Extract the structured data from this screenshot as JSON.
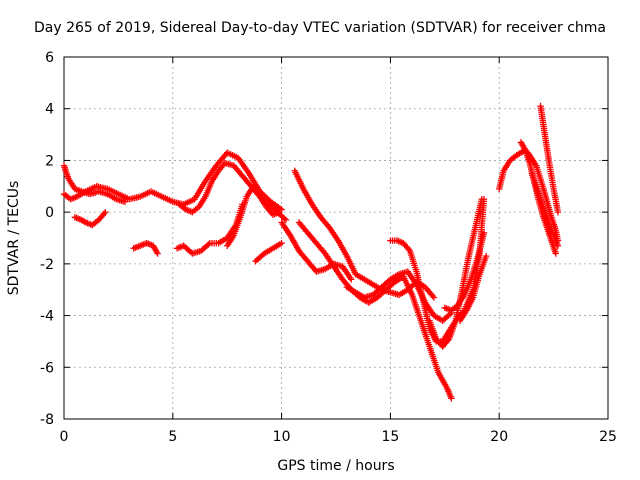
{
  "chart_data": {
    "type": "scatter",
    "title": "Day 265 of 2019, Sidereal Day-to-day VTEC variation (SDTVAR) for receiver chma",
    "xlabel": "GPS time / hours",
    "ylabel": "SDTVAR / TECUs",
    "xlim": [
      0,
      25
    ],
    "ylim": [
      -8,
      6
    ],
    "x_ticks": [
      0,
      5,
      10,
      15,
      20,
      25
    ],
    "y_ticks": [
      -8,
      -6,
      -4,
      -2,
      0,
      2,
      4,
      6
    ],
    "grid": true,
    "marker": "+",
    "color": "#ff0000",
    "series": [
      {
        "name": "s1",
        "x": [
          0.0,
          0.3,
          0.6,
          1.0,
          1.5,
          2.0,
          2.5,
          3.0,
          3.5,
          4.0,
          4.5,
          5.0,
          5.5,
          6.0,
          6.5,
          7.0,
          7.5,
          8.0,
          8.5,
          9.0,
          9.5,
          10.0
        ],
        "y": [
          0.7,
          0.5,
          0.6,
          0.8,
          1.0,
          0.9,
          0.7,
          0.5,
          0.6,
          0.8,
          0.6,
          0.4,
          0.3,
          0.5,
          1.2,
          1.8,
          2.3,
          2.1,
          1.5,
          0.8,
          0.4,
          0.1
        ]
      },
      {
        "name": "s2",
        "x": [
          0.0,
          0.2,
          0.5,
          0.8,
          1.2,
          1.6,
          2.0,
          2.4,
          2.8
        ],
        "y": [
          1.8,
          1.3,
          0.9,
          0.8,
          0.7,
          0.8,
          0.7,
          0.5,
          0.4
        ]
      },
      {
        "name": "s3",
        "x": [
          0.5,
          0.8,
          1.0,
          1.3,
          1.6,
          1.9
        ],
        "y": [
          -0.2,
          -0.3,
          -0.4,
          -0.5,
          -0.3,
          0.0
        ]
      },
      {
        "name": "s4",
        "x": [
          3.2,
          3.5,
          3.8,
          4.1,
          4.3
        ],
        "y": [
          -1.4,
          -1.3,
          -1.2,
          -1.3,
          -1.6
        ]
      },
      {
        "name": "s5",
        "x": [
          5.3,
          5.6,
          5.9,
          6.2,
          6.5,
          6.8,
          7.1,
          7.4,
          7.8,
          8.2,
          8.6,
          9.0,
          9.4,
          9.8,
          10.2
        ],
        "y": [
          0.3,
          0.1,
          0.0,
          0.2,
          0.6,
          1.2,
          1.6,
          1.9,
          1.8,
          1.4,
          1.0,
          0.6,
          0.3,
          0.0,
          -0.3
        ]
      },
      {
        "name": "s6",
        "x": [
          5.2,
          5.5,
          5.9,
          6.3,
          6.7,
          7.1,
          7.5,
          7.9,
          8.2
        ],
        "y": [
          -1.4,
          -1.3,
          -1.6,
          -1.5,
          -1.2,
          -1.2,
          -1.0,
          -0.5,
          0.3
        ]
      },
      {
        "name": "s7",
        "x": [
          7.5,
          7.8,
          8.1,
          8.4,
          8.7,
          9.0,
          9.3,
          9.6,
          9.9
        ],
        "y": [
          -1.3,
          -0.9,
          -0.2,
          0.6,
          1.0,
          0.6,
          0.2,
          -0.1,
          0.0
        ]
      },
      {
        "name": "s8",
        "x": [
          8.8,
          9.2,
          9.6,
          10.0
        ],
        "y": [
          -1.9,
          -1.6,
          -1.4,
          -1.2
        ]
      },
      {
        "name": "s9",
        "x": [
          10.0,
          10.4,
          10.8,
          11.2,
          11.6,
          12.0,
          12.4,
          12.8,
          13.2
        ],
        "y": [
          -0.4,
          -0.9,
          -1.5,
          -1.9,
          -2.3,
          -2.2,
          -2.0,
          -2.1,
          -2.6
        ]
      },
      {
        "name": "s10",
        "x": [
          10.6,
          11.0,
          11.4,
          11.8,
          12.2,
          12.6,
          13.0,
          13.4,
          13.8,
          14.2,
          14.6,
          15.0,
          15.4,
          15.8,
          16.2,
          16.6,
          17.0
        ],
        "y": [
          1.6,
          0.9,
          0.3,
          -0.2,
          -0.6,
          -1.1,
          -1.7,
          -2.4,
          -2.6,
          -2.8,
          -3.0,
          -3.1,
          -3.2,
          -3.0,
          -2.7,
          -2.9,
          -3.3
        ]
      },
      {
        "name": "s11",
        "x": [
          10.8,
          11.2,
          11.6,
          12.0,
          12.4,
          12.8,
          13.2,
          13.6,
          14.0,
          14.4,
          14.8,
          15.2,
          15.6,
          16.0,
          16.4,
          16.8,
          17.2,
          17.6,
          17.8
        ],
        "y": [
          -0.4,
          -0.8,
          -1.2,
          -1.6,
          -2.1,
          -2.6,
          -3.0,
          -3.3,
          -3.5,
          -3.3,
          -3.0,
          -2.7,
          -2.5,
          -3.2,
          -4.2,
          -5.2,
          -6.2,
          -6.8,
          -7.2
        ]
      },
      {
        "name": "s12",
        "x": [
          13.0,
          13.4,
          13.8,
          14.2,
          14.6,
          15.0,
          15.4,
          15.8,
          16.2,
          16.6,
          17.0,
          17.4,
          17.8
        ],
        "y": [
          -2.9,
          -3.1,
          -3.3,
          -3.2,
          -2.9,
          -2.6,
          -2.4,
          -2.3,
          -2.8,
          -3.5,
          -4.0,
          -4.2,
          -3.9
        ]
      },
      {
        "name": "s13",
        "x": [
          15.0,
          15.3,
          15.6,
          15.9,
          16.2,
          16.5,
          16.8,
          17.1,
          17.4,
          17.7,
          18.0,
          18.4,
          18.8,
          19.1,
          19.3
        ],
        "y": [
          -1.1,
          -1.1,
          -1.2,
          -1.5,
          -2.3,
          -3.4,
          -4.5,
          -5.0,
          -5.0,
          -4.6,
          -4.2,
          -3.8,
          -3.0,
          -1.6,
          0.5
        ]
      },
      {
        "name": "s14",
        "x": [
          16.8,
          17.1,
          17.4,
          17.7,
          18.0,
          18.3,
          18.6,
          18.9,
          19.2
        ],
        "y": [
          -4.2,
          -4.9,
          -5.2,
          -4.9,
          -4.2,
          -3.0,
          -1.7,
          -0.6,
          0.5
        ]
      },
      {
        "name": "s15",
        "x": [
          17.5,
          17.8,
          18.1,
          18.4,
          18.7,
          19.0,
          19.3
        ],
        "y": [
          -3.7,
          -3.8,
          -3.6,
          -3.2,
          -2.6,
          -1.8,
          -0.8
        ]
      },
      {
        "name": "s16",
        "x": [
          18.2,
          18.5,
          18.8,
          19.1,
          19.4
        ],
        "y": [
          -4.2,
          -3.8,
          -3.3,
          -2.4,
          -1.7
        ]
      },
      {
        "name": "s17",
        "x": [
          20.0,
          20.2,
          20.5,
          20.8,
          21.0,
          21.2,
          21.4,
          21.7,
          22.0,
          22.2,
          22.4,
          22.6,
          22.7
        ],
        "y": [
          0.9,
          1.6,
          2.0,
          2.2,
          2.3,
          2.4,
          2.2,
          1.8,
          1.0,
          0.4,
          -0.2,
          -0.7,
          -1.1
        ]
      },
      {
        "name": "s18",
        "x": [
          21.0,
          21.2,
          21.4,
          21.6,
          21.8,
          22.0,
          22.2,
          22.4,
          22.6
        ],
        "y": [
          2.7,
          2.4,
          1.9,
          1.2,
          0.5,
          -0.1,
          -0.6,
          -1.1,
          -1.6
        ]
      },
      {
        "name": "s19",
        "x": [
          21.9,
          22.1,
          22.3,
          22.5,
          22.7
        ],
        "y": [
          4.1,
          3.0,
          1.9,
          0.9,
          0.0
        ]
      },
      {
        "name": "s20",
        "x": [
          21.5,
          21.7,
          21.9,
          22.1,
          22.3,
          22.5,
          22.7
        ],
        "y": [
          1.5,
          1.0,
          0.5,
          0.0,
          -0.5,
          -0.9,
          -1.3
        ]
      }
    ]
  }
}
